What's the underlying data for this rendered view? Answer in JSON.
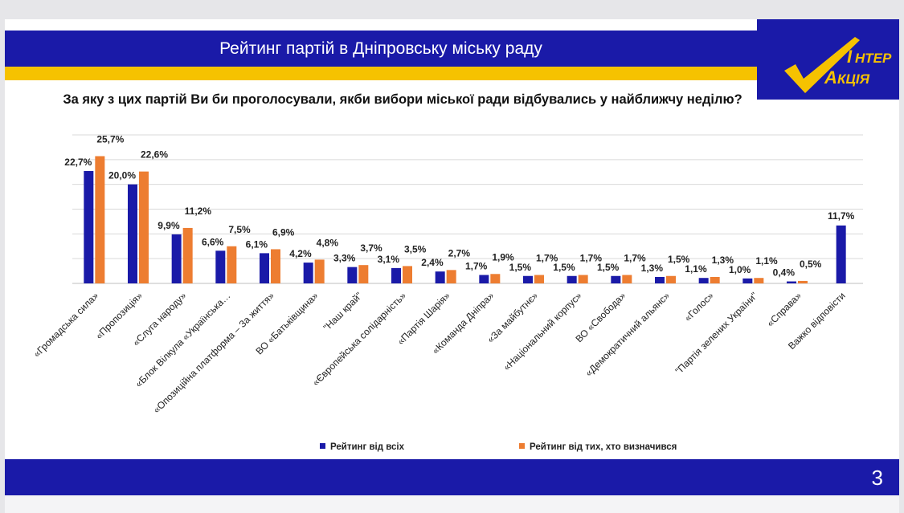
{
  "header": {
    "title": "Рейтинг партій в Дніпровську міську раду"
  },
  "logo": {
    "text_top": "НТЕР",
    "text_bottom": "КЦІЯ",
    "letter_i": "І",
    "letter_a": "А"
  },
  "colors": {
    "header_blue": "#1a1aa8",
    "header_yellow": "#f6c200",
    "series_all": "#1a1aa8",
    "series_decided": "#ed7d31"
  },
  "chart_data": {
    "type": "bar",
    "title": "За яку з цих партій Ви би проголосували, якби вибори міської ради відбувались у найближчу неділю?",
    "xlabel": "",
    "ylabel": "",
    "ylim": [
      0,
      30
    ],
    "grid": true,
    "legend_position": "bottom",
    "categories": [
      "«Громадська сила»",
      "«Пропозиція»",
      "«Слуга народу»",
      "«Блок Вілкула «Українська…",
      "«Опозиційна платформа – За життя»",
      "ВО «Батьківщина»",
      "\"Наш край\"",
      "«Європейська солідарність»",
      "«Партія Шарія»",
      "«Команда Дніпра»",
      "«За майбутнє»",
      "«Національний корпус»",
      "ВО «Свобода»",
      "«Демократичний альянс»",
      "«Голос»",
      "\"Партія зелених України\"",
      "«Справа»",
      "Важко відповісти"
    ],
    "series": [
      {
        "name": "Рейтинг від всіх",
        "values": [
          22.7,
          20.0,
          9.9,
          6.6,
          6.1,
          4.2,
          3.3,
          3.1,
          2.4,
          1.7,
          1.5,
          1.5,
          1.5,
          1.3,
          1.1,
          1.0,
          0.4,
          11.7
        ],
        "labels": [
          "22,7%",
          "20,0%",
          "9,9%",
          "6,6%",
          "6,1%",
          "4,2%",
          "3,3%",
          "3,1%",
          "2,4%",
          "1,7%",
          "1,5%",
          "1,5%",
          "1,5%",
          "1,3%",
          "1,1%",
          "1,0%",
          "0,4%",
          "11,7%"
        ]
      },
      {
        "name": "Рейтинг від тих, хто визначився",
        "values": [
          25.7,
          22.6,
          11.2,
          7.5,
          6.9,
          4.8,
          3.7,
          3.5,
          2.7,
          1.9,
          1.7,
          1.7,
          1.7,
          1.5,
          1.3,
          1.1,
          0.5,
          null
        ],
        "labels": [
          "25,7%",
          "22,6%",
          "11,2%",
          "7,5%",
          "6,9%",
          "4,8%",
          "3,7%",
          "3,5%",
          "2,7%",
          "1,9%",
          "1,7%",
          "1,7%",
          "1,7%",
          "1,5%",
          "1,3%",
          "1,1%",
          "0,5%",
          null
        ]
      }
    ]
  },
  "footer": {
    "page_number": "3"
  }
}
